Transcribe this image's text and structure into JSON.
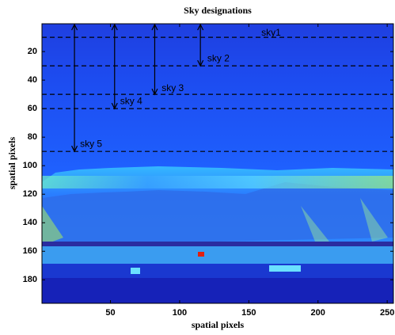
{
  "chart_data": {
    "type": "image",
    "title": "Sky designations",
    "x_label": "spatial pixels",
    "y_label": "spatial pixels",
    "xlim": [
      0.5,
      254.5
    ],
    "ylim": [
      0.5,
      196.5
    ],
    "y_reversed": true,
    "xticks": [
      50,
      100,
      150,
      200,
      250
    ],
    "yticks": [
      20,
      40,
      60,
      80,
      100,
      120,
      140,
      160,
      180
    ],
    "hlines": [
      10,
      30,
      50,
      60,
      90
    ],
    "arrows": [
      {
        "x": 115,
        "y_end": 30
      },
      {
        "x": 82,
        "y_end": 50
      },
      {
        "x": 53,
        "y_end": 60
      },
      {
        "x": 24,
        "y_end": 90
      }
    ],
    "annotations": [
      {
        "text": "sky1",
        "x": 159,
        "y": 7
      },
      {
        "text": "sky 2",
        "x": 120,
        "y": 25
      },
      {
        "text": "sky 3",
        "x": 87,
        "y": 46
      },
      {
        "text": "sky 4",
        "x": 57,
        "y": 55
      },
      {
        "text": "sky 5",
        "x": 28,
        "y": 85
      }
    ]
  }
}
